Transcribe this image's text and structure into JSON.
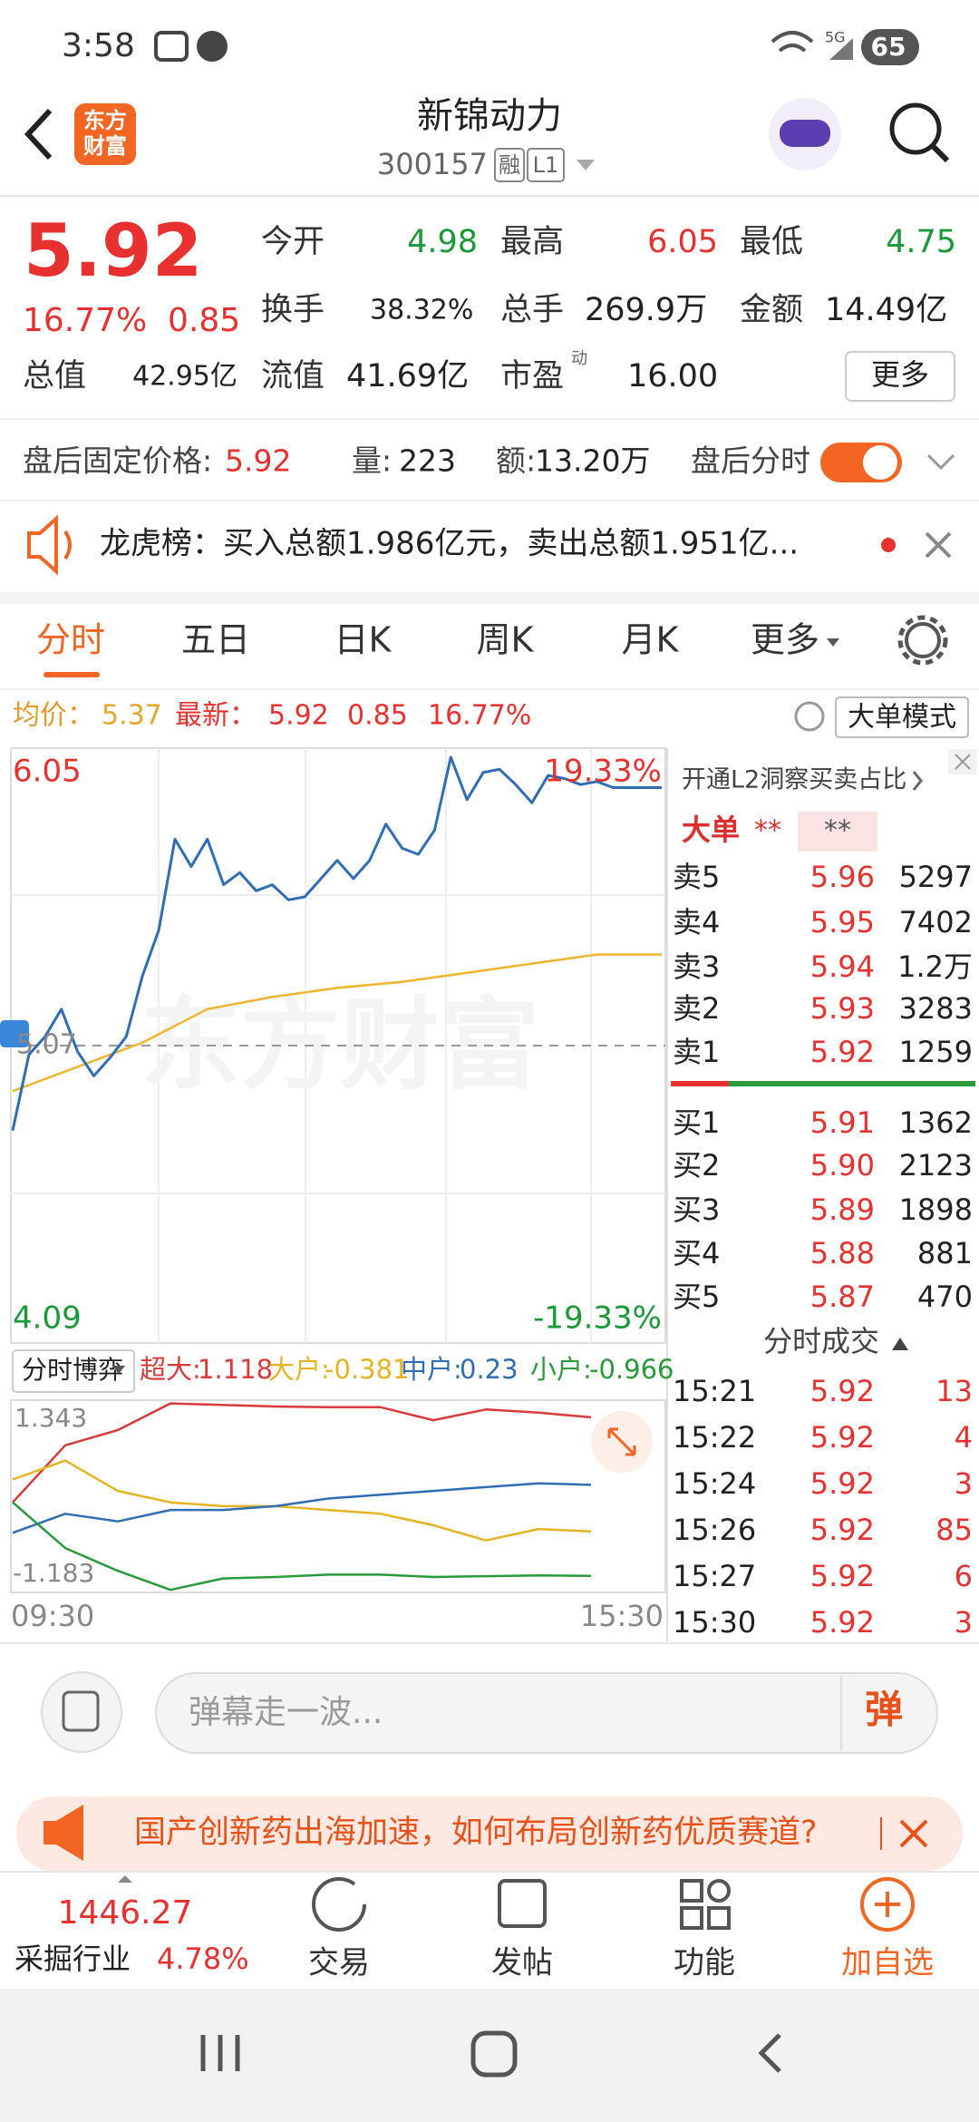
{
  "status": {
    "time": "3:58",
    "network": "5G",
    "battery": "65"
  },
  "header": {
    "logo": [
      "东方",
      "财富"
    ],
    "title": "新锦动力",
    "code": "300157",
    "tags": [
      "融",
      "L1"
    ]
  },
  "quote": {
    "price": "5.92",
    "change_pct": "16.77%",
    "change": "0.85",
    "stats": [
      {
        "label": "今开",
        "value": "4.98"
      },
      {
        "label": "最高",
        "value": "6.05"
      },
      {
        "label": "最低",
        "value": "4.75"
      },
      {
        "label": "换手",
        "value": "38.32%"
      },
      {
        "label": "总手",
        "value": "269.9万"
      },
      {
        "label": "金额",
        "value": "14.49亿"
      },
      {
        "label": "总值",
        "value": "42.95亿"
      },
      {
        "label": "流值",
        "value": "41.69亿"
      },
      {
        "label": "市盈",
        "sup": "动",
        "value": "16.00"
      }
    ],
    "more": "更多"
  },
  "after_hours": {
    "label": "盘后固定价格:",
    "price": "5.92",
    "volume_label": "量:",
    "volume": "223",
    "amount_label": "额:",
    "amount": "13.20万",
    "toggle_label": "盘后分时"
  },
  "notice": "龙虎榜：买入总额1.986亿元，卖出总额1.951亿...",
  "tabs": [
    "分时",
    "五日",
    "日K",
    "周K",
    "月K",
    "更多"
  ],
  "chart_info": {
    "avg_label": "均价：",
    "avg": "5.37",
    "latest_label": "最新：",
    "latest": "5.92",
    "change": "0.85",
    "change_pct": "16.77%",
    "mode": "大单模式"
  },
  "chart": {
    "type": "line",
    "watermark": "东方财富",
    "ylim": [
      4.09,
      6.05
    ],
    "prev_close": 5.07,
    "pct_labels": [
      "19.33%",
      "-19.33%"
    ],
    "price_color": "#2f6db5",
    "avg_color": "#efb52e",
    "price": [
      4.79,
      5.04,
      5.1,
      5.19,
      5.05,
      4.97,
      5.03,
      5.1,
      5.3,
      5.45,
      5.75,
      5.66,
      5.75,
      5.6,
      5.64,
      5.58,
      5.6,
      5.55,
      5.56,
      5.62,
      5.68,
      5.62,
      5.68,
      5.8,
      5.72,
      5.7,
      5.78,
      6.02,
      5.88,
      5.97,
      5.98,
      5.93,
      5.87,
      5.96,
      5.95,
      5.93,
      5.94,
      5.92,
      5.92,
      5.92,
      5.92
    ],
    "avg": [
      4.92,
      5.0,
      5.08,
      5.19,
      5.23,
      5.26,
      5.28,
      5.31,
      5.34,
      5.37,
      5.37
    ],
    "x_labels": [
      "09:30",
      "15:30"
    ]
  },
  "flow": {
    "type": "line",
    "selector": "分时博弈",
    "ylim": [
      -1.183,
      1.343
    ],
    "series": [
      {
        "name": "超大:",
        "color": "#d93a3a",
        "values": [
          0.0,
          0.75,
          0.95,
          1.3,
          1.28,
          1.26,
          1.25,
          1.25,
          1.08,
          1.22,
          1.18,
          1.118
        ]
      },
      {
        "name": "大户:",
        "color": "#e6b422",
        "values": [
          0.3,
          0.55,
          0.15,
          0.0,
          -0.05,
          -0.05,
          -0.1,
          -0.15,
          -0.3,
          -0.5,
          -0.35,
          -0.381
        ]
      },
      {
        "name": "中户:",
        "color": "#2f6db5",
        "values": [
          -0.4,
          -0.15,
          -0.25,
          -0.1,
          -0.1,
          -0.05,
          0.05,
          0.1,
          0.15,
          0.2,
          0.25,
          0.23
        ]
      },
      {
        "name": "小户:",
        "color": "#2a9a3a",
        "values": [
          0.0,
          -0.6,
          -0.9,
          -1.15,
          -1.0,
          -0.98,
          -0.95,
          -0.95,
          -0.98,
          -0.97,
          -0.96,
          -0.966
        ]
      }
    ]
  },
  "order_book": {
    "title": "开通L2洞察买卖占比",
    "big_order": "大单",
    "masked": [
      "**",
      "**"
    ],
    "asks": [
      {
        "label": "卖5",
        "price": "5.96",
        "volume": "5297"
      },
      {
        "label": "卖4",
        "price": "5.95",
        "volume": "7402"
      },
      {
        "label": "卖3",
        "price": "5.94",
        "volume": "1.2万"
      },
      {
        "label": "卖2",
        "price": "5.93",
        "volume": "3283"
      },
      {
        "label": "卖1",
        "price": "5.92",
        "volume": "1259"
      }
    ],
    "bids": [
      {
        "label": "买1",
        "price": "5.91",
        "volume": "1362"
      },
      {
        "label": "买2",
        "price": "5.90",
        "volume": "2123"
      },
      {
        "label": "买3",
        "price": "5.89",
        "volume": "1898"
      },
      {
        "label": "买4",
        "price": "5.88",
        "volume": "881"
      },
      {
        "label": "买5",
        "price": "5.87",
        "volume": "470"
      }
    ]
  },
  "trades": {
    "title": "分时成交",
    "rows": [
      {
        "time": "15:21",
        "price": "5.92",
        "volume": "13"
      },
      {
        "time": "15:22",
        "price": "5.92",
        "volume": "4"
      },
      {
        "time": "15:24",
        "price": "5.92",
        "volume": "3"
      },
      {
        "time": "15:26",
        "price": "5.92",
        "volume": "85"
      },
      {
        "time": "15:27",
        "price": "5.92",
        "volume": "6"
      },
      {
        "time": "15:30",
        "price": "5.92",
        "volume": "3"
      }
    ]
  },
  "comment": {
    "placeholder": "弹幕走一波...",
    "button": "弹"
  },
  "banner": "国产创新药出海加速，如何布局创新药优质赛道?",
  "bottom_nav": {
    "index_value": "1446.27",
    "index_name": "采掘行业",
    "index_change": "4.78%",
    "items": [
      "交易",
      "发帖",
      "功能",
      "加自选"
    ]
  }
}
